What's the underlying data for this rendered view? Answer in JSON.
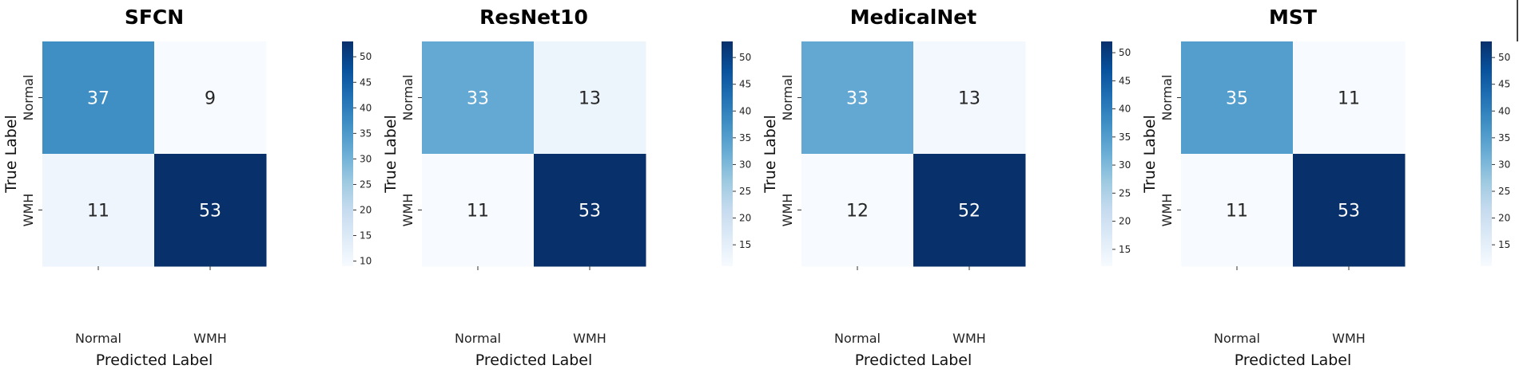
{
  "chart_data": [
    {
      "type": "heatmap",
      "title": "SFCN",
      "xlabel": "Predicted Label",
      "ylabel": "True Label",
      "x_categories": [
        "Normal",
        "WMH"
      ],
      "y_categories": [
        "Normal",
        "WMH"
      ],
      "values": [
        [
          37,
          9
        ],
        [
          11,
          53
        ]
      ],
      "colorbar": {
        "range": [
          9,
          53
        ],
        "ticks": [
          10,
          15,
          20,
          25,
          30,
          35,
          40,
          45,
          50
        ],
        "colormap": "Blues"
      }
    },
    {
      "type": "heatmap",
      "title": "ResNet10",
      "xlabel": "Predicted Label",
      "ylabel": "True Label",
      "x_categories": [
        "Normal",
        "WMH"
      ],
      "y_categories": [
        "Normal",
        "WMH"
      ],
      "values": [
        [
          33,
          13
        ],
        [
          11,
          53
        ]
      ],
      "colorbar": {
        "range": [
          11,
          53
        ],
        "ticks": [
          15,
          20,
          25,
          30,
          35,
          40,
          45,
          50
        ],
        "colormap": "Blues"
      }
    },
    {
      "type": "heatmap",
      "title": "MedicalNet",
      "xlabel": "Predicted Label",
      "ylabel": "True Label",
      "x_categories": [
        "Normal",
        "WMH"
      ],
      "y_categories": [
        "Normal",
        "WMH"
      ],
      "values": [
        [
          33,
          13
        ],
        [
          12,
          52
        ]
      ],
      "colorbar": {
        "range": [
          12,
          52
        ],
        "ticks": [
          15,
          20,
          25,
          30,
          35,
          40,
          45,
          50
        ],
        "colormap": "Blues"
      }
    },
    {
      "type": "heatmap",
      "title": "MST",
      "xlabel": "Predicted Label",
      "ylabel": "True Label",
      "x_categories": [
        "Normal",
        "WMH"
      ],
      "y_categories": [
        "Normal",
        "WMH"
      ],
      "values": [
        [
          35,
          11
        ],
        [
          11,
          53
        ]
      ],
      "colorbar": {
        "range": [
          11,
          53
        ],
        "ticks": [
          15,
          20,
          25,
          30,
          35,
          40,
          45,
          50
        ],
        "colormap": "Blues"
      }
    }
  ]
}
